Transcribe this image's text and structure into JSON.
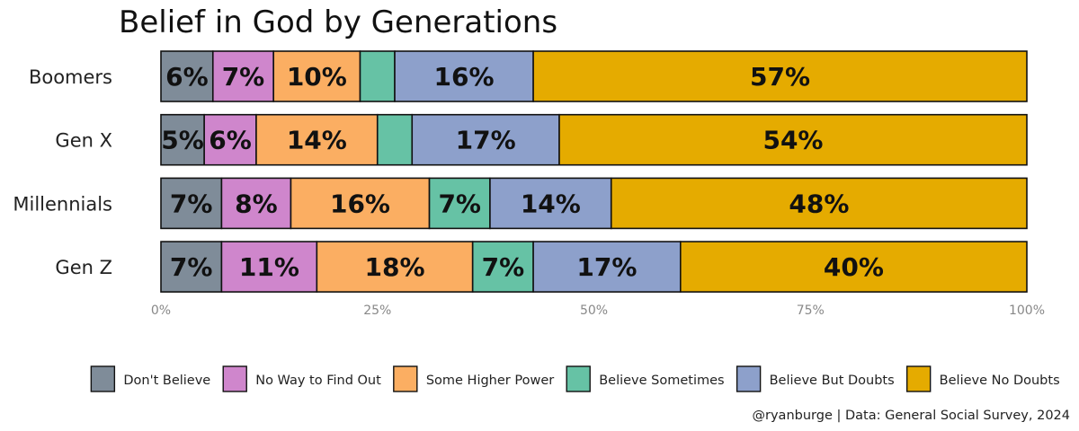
{
  "chart_data": {
    "type": "bar",
    "orientation": "horizontal",
    "stacked": true,
    "title": "Belief in God by Generations",
    "categories": [
      "Boomers",
      "Gen X",
      "Millennials",
      "Gen Z"
    ],
    "series": [
      {
        "name": "Don't Believe",
        "color": "#7f8c99",
        "values": [
          6,
          5,
          7,
          7
        ],
        "labels": [
          "6%",
          "5%",
          "7%",
          "7%"
        ]
      },
      {
        "name": "No Way to Find Out",
        "color": "#cf86cc",
        "values": [
          7,
          6,
          8,
          11
        ],
        "labels": [
          "7%",
          "6%",
          "8%",
          "11%"
        ]
      },
      {
        "name": "Some Higher Power",
        "color": "#fbae62",
        "values": [
          10,
          14,
          16,
          18
        ],
        "labels": [
          "10%",
          "14%",
          "16%",
          "18%"
        ]
      },
      {
        "name": "Believe Sometimes",
        "color": "#66c2a5",
        "values": [
          4,
          4,
          7,
          7
        ],
        "labels": [
          "",
          "",
          "7%",
          "7%"
        ]
      },
      {
        "name": "Believe But Doubts",
        "color": "#8da0cb",
        "values": [
          16,
          17,
          14,
          17
        ],
        "labels": [
          "16%",
          "17%",
          "14%",
          "17%"
        ]
      },
      {
        "name": "Believe No Doubts",
        "color": "#e5ab00",
        "values": [
          57,
          54,
          48,
          40
        ],
        "labels": [
          "57%",
          "54%",
          "48%",
          "40%"
        ]
      }
    ],
    "xlim": [
      0,
      100
    ],
    "x_ticks": [
      0,
      25,
      50,
      75,
      100
    ],
    "x_tick_labels": [
      "0%",
      "25%",
      "50%",
      "75%",
      "100%"
    ],
    "grid": false,
    "legend_position": "bottom",
    "caption": "@ryanburge | Data: General Social Survey, 2024"
  }
}
